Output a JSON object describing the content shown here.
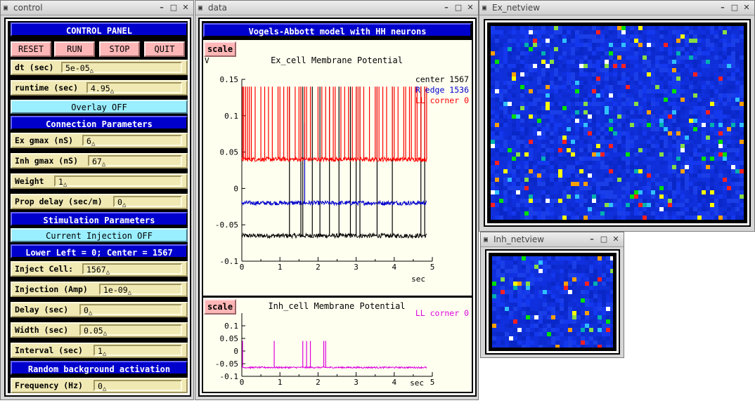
{
  "windows": {
    "control": {
      "title": "control"
    },
    "data": {
      "title": "data"
    },
    "ex_netview": {
      "title": "Ex_netview"
    },
    "inh_netview": {
      "title": "Inh_netview"
    }
  },
  "control_panel": {
    "header": "CONTROL PANEL",
    "buttons": {
      "reset": "RESET",
      "run": "RUN",
      "stop": "STOP",
      "quit": "QUIT"
    },
    "dt": {
      "label": "dt (sec)",
      "value": "5e-05"
    },
    "runtime": {
      "label": "runtime (sec)",
      "value": "4.95"
    },
    "overlay": "Overlay OFF",
    "connection_header": "Connection Parameters",
    "ex_gmax": {
      "label": "Ex gmax (nS)",
      "value": "6"
    },
    "inh_gmax": {
      "label": "Inh gmax (nS)",
      "value": "67"
    },
    "weight": {
      "label": "Weight",
      "value": "1"
    },
    "prop_delay": {
      "label": "Prop delay (sec/m)",
      "value": "0"
    },
    "stimulation_header": "Stimulation Parameters",
    "current_injection": "Current Injection OFF",
    "lower_left": "Lower Left = 0; Center = 1567",
    "inject_cell": {
      "label": "Inject Cell:",
      "value": "1567"
    },
    "injection_amp": {
      "label": "Injection (Amp)",
      "value": "1e-09"
    },
    "delay": {
      "label": "Delay (sec)",
      "value": "0"
    },
    "width": {
      "label": "Width (sec)",
      "value": "0.05"
    },
    "interval": {
      "label": "Interval (sec)",
      "value": "1"
    },
    "random_header": "Random background activation",
    "frequency": {
      "label": "Frequency (Hz)",
      "value": "0"
    }
  },
  "data_panel": {
    "title": "Vogels-Abbott model with HH neurons",
    "scale_label": "scale",
    "colors": {
      "red": "#ff0000",
      "blue": "#0000cc",
      "black": "#000000",
      "magenta": "#dd00dd"
    }
  },
  "chart_data": [
    {
      "type": "line",
      "title": "Ex_cell Membrane Potential",
      "ylabel": "V",
      "xlabel": "sec",
      "xlim": [
        0,
        5
      ],
      "ylim": [
        -0.1,
        0.15
      ],
      "x_ticks": [
        "0",
        "0.5",
        "1",
        "1.5",
        "2",
        "2.5",
        "3",
        "3.5",
        "4",
        "4.5",
        "5"
      ],
      "y_ticks": [
        "0.15",
        "0.1",
        "0.05",
        "0",
        "-0.05",
        "-0.1"
      ],
      "legend_position": "top-right",
      "series": [
        {
          "name": "center 1567",
          "color": "#000000",
          "baseline": -0.065,
          "spike_peak": 0.14,
          "spike_times": [
            1.25,
            1.55,
            1.6,
            1.85,
            2.05,
            2.3,
            2.55,
            2.85,
            3.0,
            3.1,
            3.55,
            3.95,
            4.7,
            4.8
          ]
        },
        {
          "name": "R edge 1536",
          "color": "#0000cc",
          "baseline": -0.02,
          "spike_peak": 0.09,
          "spike_times": [
            1.65
          ]
        },
        {
          "name": "LL corner 0",
          "color": "#ff0000",
          "baseline": 0.04,
          "spike_peak": 0.14,
          "spike_times": [
            0.02,
            0.05,
            0.1,
            0.15,
            0.2,
            0.25,
            0.35,
            0.5,
            0.6,
            0.7,
            0.8,
            0.95,
            1.0,
            1.1,
            1.2,
            1.25,
            1.4,
            1.5,
            1.55,
            1.65,
            1.7,
            1.8,
            2.0,
            2.1,
            2.2,
            2.3,
            2.4,
            2.45,
            2.6,
            2.7,
            2.8,
            2.9,
            3.0,
            3.05,
            3.1,
            3.2,
            3.35,
            3.5,
            3.55,
            3.6,
            3.7,
            3.8,
            3.95,
            4.0,
            4.1,
            4.25,
            4.3,
            4.4,
            4.45,
            4.55,
            4.6,
            4.7,
            4.8,
            4.85
          ]
        }
      ]
    },
    {
      "type": "line",
      "title": "Inh_cell Membrane Potential",
      "xlabel": "sec",
      "xlim": [
        0,
        5
      ],
      "ylim": [
        -0.1,
        0.15
      ],
      "x_ticks": [
        "0",
        "0.5",
        "1",
        "1.5",
        "2",
        "2.5",
        "3",
        "3.5",
        "4",
        "4.5",
        "5"
      ],
      "y_ticks": [
        "0.1",
        "0.05",
        "0",
        "-0.05",
        "-0.1"
      ],
      "legend_position": "top-right",
      "series": [
        {
          "name": "LL corner 0",
          "color": "#dd00dd",
          "baseline": -0.065,
          "spike_peak": 0.04,
          "spike_times": [
            0.02,
            0.85,
            1.6,
            1.7,
            1.8,
            2.15,
            2.2
          ]
        }
      ]
    }
  ]
}
